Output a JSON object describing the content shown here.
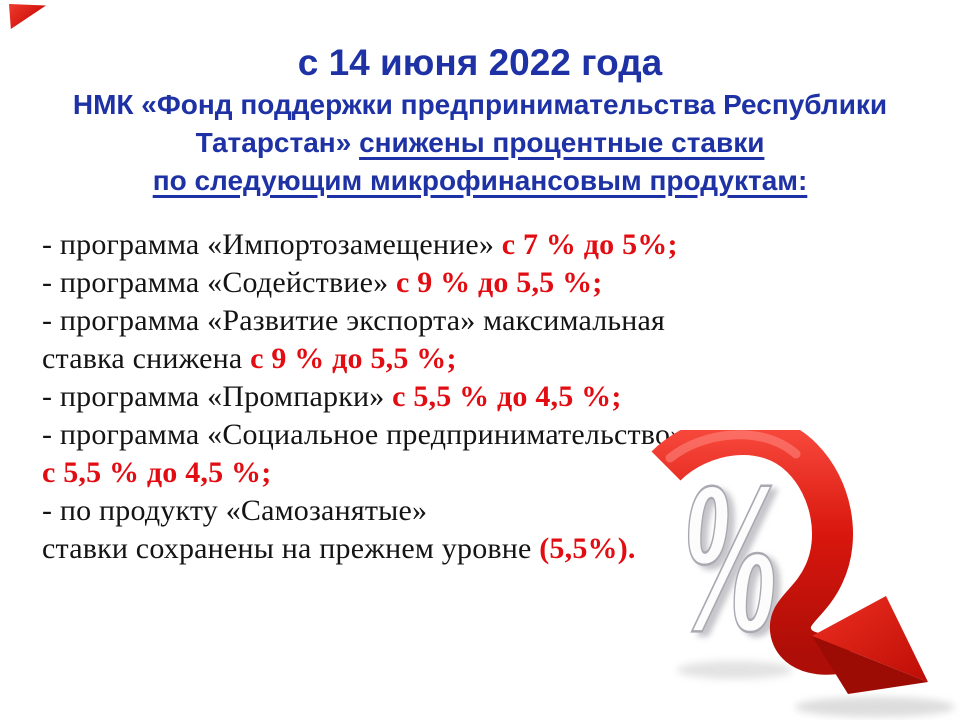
{
  "slide": {
    "colors": {
      "background": "#ffffff",
      "title_blue": "#1e32a5",
      "highlight_red": "#e20d12",
      "accent_red": "#d31510",
      "arrow_red": "#d3170e",
      "percent_white": "#fcfcfd"
    },
    "title": {
      "line1": "с 14 июня 2022 года",
      "line2": "НМК «Фонд поддержки предпринимательства Республики",
      "line3_prefix": "Татарстан» ",
      "line3_underlined": "снижены процентные ставки",
      "line4_underlined": "по следующим микрофинансовым продуктам:"
    },
    "body_lines": [
      {
        "segments": [
          {
            "text": "- программа «Импортозамещение» ",
            "style": "normal"
          },
          {
            "text": "с 7 % до 5%;",
            "style": "red"
          }
        ]
      },
      {
        "segments": [
          {
            "text": "- программа «Содействие» ",
            "style": "normal"
          },
          {
            "text": "с 9 % до 5,5 %;",
            "style": "red"
          }
        ]
      },
      {
        "segments": [
          {
            "text": "- программа «Развитие экспорта» максимальная",
            "style": "normal"
          }
        ]
      },
      {
        "segments": [
          {
            "text": "ставка снижена ",
            "style": "normal"
          },
          {
            "text": "с 9 % до 5,5 %;",
            "style": "red"
          }
        ]
      },
      {
        "segments": [
          {
            "text": "- программа «Промпарки» ",
            "style": "normal"
          },
          {
            "text": "с 5,5 % до 4,5 %;",
            "style": "red"
          }
        ]
      },
      {
        "segments": [
          {
            "text": "- программа «Социальное предпринимательство»",
            "style": "normal"
          }
        ]
      },
      {
        "segments": [
          {
            "text": "с 5,5 % до 4,5 %;",
            "style": "red"
          }
        ]
      },
      {
        "segments": [
          {
            "text": "- по продукту «Самозанятые»",
            "style": "normal"
          }
        ]
      },
      {
        "segments": [
          {
            "text": "ставки сохранены на прежнем уровне ",
            "style": "normal"
          },
          {
            "text": "(5,5%).",
            "style": "red"
          }
        ]
      }
    ],
    "graphic": {
      "description": "3D white percent sign with glossy red arrow curving downward",
      "percent_label": "%"
    }
  }
}
